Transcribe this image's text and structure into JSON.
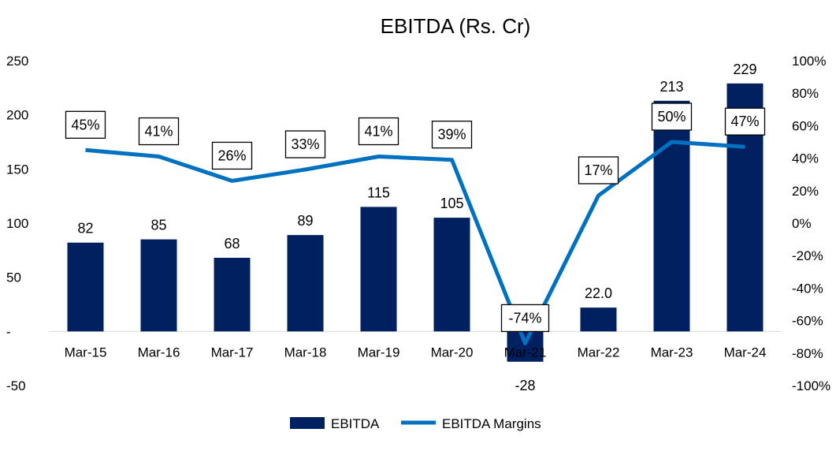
{
  "chart_data": {
    "type": "bar",
    "title": "EBITDA (Rs. Cr)",
    "categories": [
      "Mar-15",
      "Mar-16",
      "Mar-17",
      "Mar-18",
      "Mar-19",
      "Mar-20",
      "Mar-21",
      "Mar-22",
      "Mar-23",
      "Mar-24"
    ],
    "series": [
      {
        "name": "EBITDA",
        "type": "bar",
        "axis": "left",
        "color": "#002060",
        "values": [
          82,
          85,
          68,
          89,
          115,
          105,
          -28,
          22.0,
          213,
          229
        ],
        "labels": [
          "82",
          "85",
          "68",
          "89",
          "115",
          "105",
          "-28",
          "22.0",
          "213",
          "229"
        ]
      },
      {
        "name": "EBITDA Margins",
        "type": "line",
        "axis": "right",
        "color": "#0070C0",
        "values": [
          45,
          41,
          26,
          33,
          41,
          39,
          -74,
          17,
          50,
          47
        ],
        "labels": [
          "45%",
          "41%",
          "26%",
          "33%",
          "41%",
          "39%",
          "-74%",
          "17%",
          "50%",
          "47%"
        ]
      }
    ],
    "y_left": {
      "range": [
        -50,
        250
      ],
      "ticks": [
        250,
        200,
        150,
        100,
        50,
        0,
        -50
      ],
      "tick_labels": [
        "250",
        "200",
        "150",
        "100",
        "50",
        "-",
        "-50"
      ]
    },
    "y_right": {
      "range": [
        -100,
        100
      ],
      "ticks": [
        100,
        80,
        60,
        40,
        20,
        0,
        -20,
        -40,
        -60,
        -80,
        -100
      ],
      "tick_labels": [
        "100%",
        "80%",
        "60%",
        "40%",
        "20%",
        "0%",
        "-20%",
        "-40%",
        "-60%",
        "-80%",
        "-100%"
      ]
    },
    "legend": {
      "position": "bottom",
      "items": [
        "EBITDA",
        "EBITDA Margins"
      ]
    },
    "grid": false
  }
}
